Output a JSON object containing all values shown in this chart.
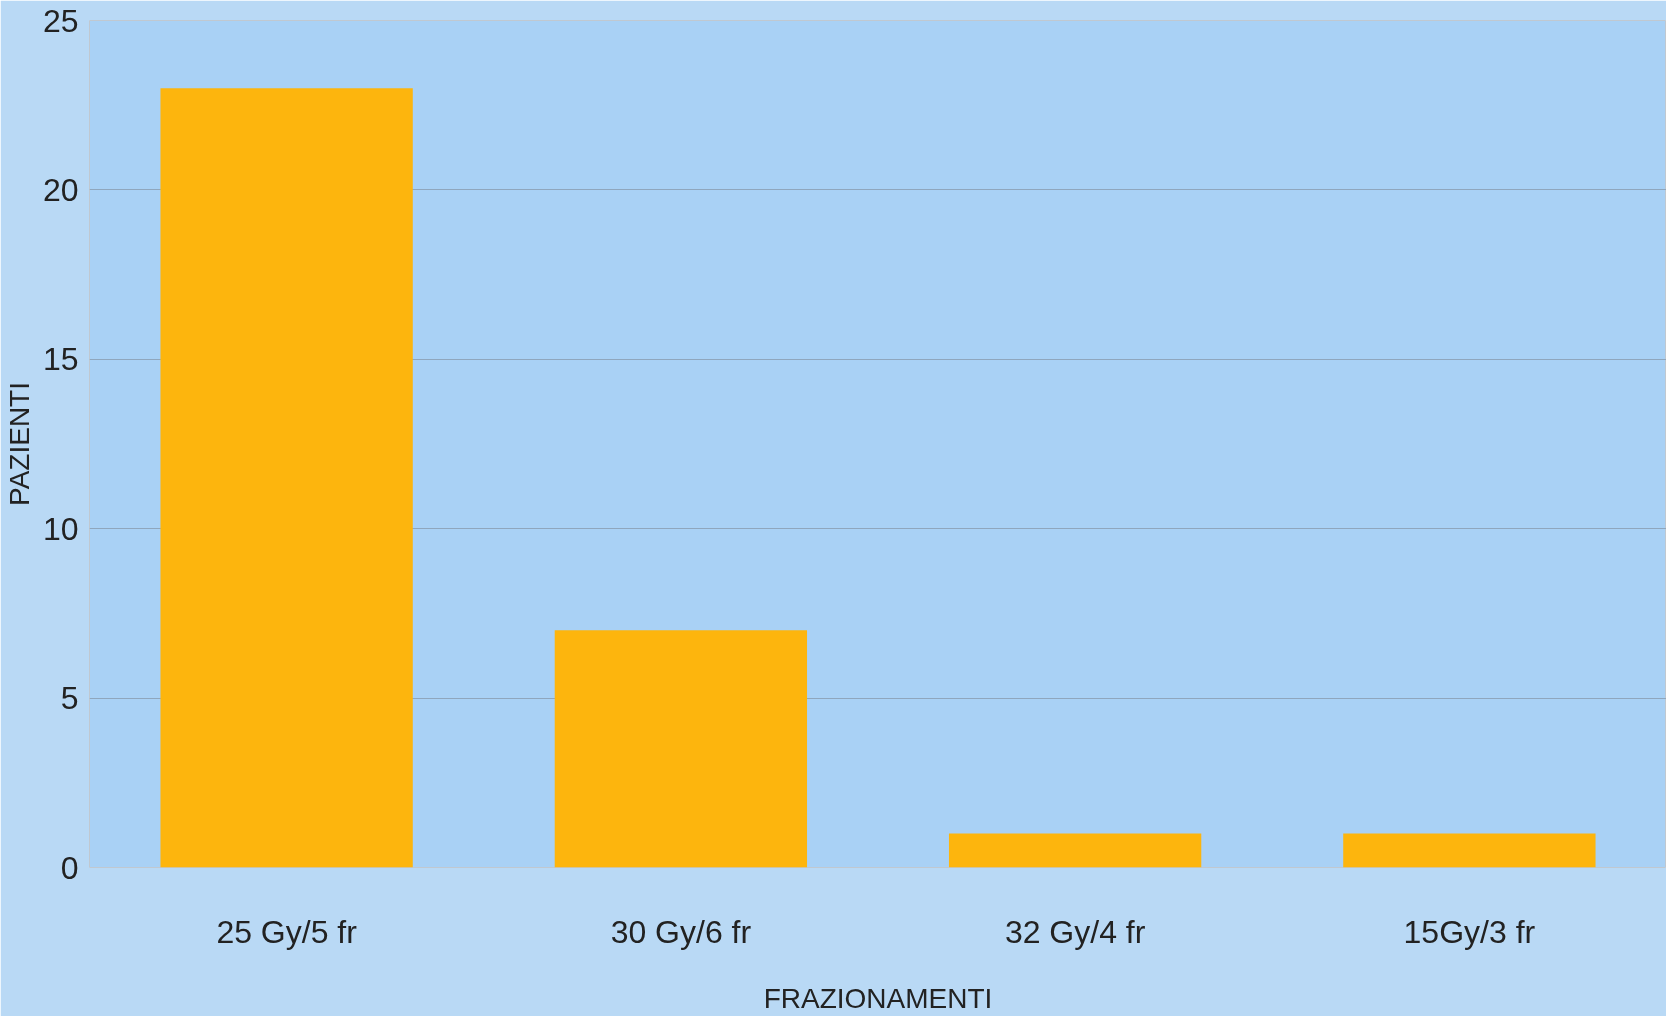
{
  "chart_data": {
    "type": "bar",
    "xlabel": "FRAZIONAMENTI",
    "ylabel": "PAZIENTI",
    "categories": [
      "25 Gy/5 fr",
      "30 Gy/6 fr",
      "32 Gy/4 fr",
      "15Gy/3 fr"
    ],
    "values": [
      23,
      7,
      1,
      1
    ],
    "color": "#fdb50d",
    "ylim": [
      0,
      25
    ],
    "yticks": [
      0,
      5,
      10,
      15,
      20,
      25
    ],
    "grid": "y",
    "legend": false
  }
}
